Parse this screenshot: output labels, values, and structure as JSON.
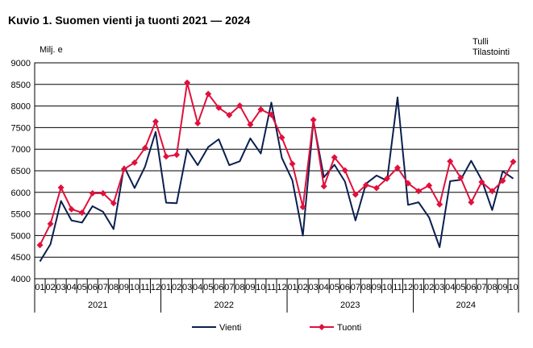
{
  "chart_data": {
    "type": "line",
    "title": "Kuvio 1. Suomen vienti ja tuonti 2021 — 2024",
    "ylabel": "Milj. e",
    "source": [
      "Tulli",
      "Tilastointi"
    ],
    "ylim": [
      4000,
      9000
    ],
    "yticks": [
      4000,
      4500,
      5000,
      5500,
      6000,
      6500,
      7000,
      7500,
      8000,
      8500,
      9000
    ],
    "grid": true,
    "legend_position": "bottom",
    "years": [
      "2021",
      "2022",
      "2023",
      "2024"
    ],
    "months": [
      "01",
      "02",
      "03",
      "04",
      "05",
      "06",
      "07",
      "08",
      "09",
      "10",
      "11",
      "12",
      "01",
      "02",
      "03",
      "04",
      "05",
      "06",
      "07",
      "08",
      "09",
      "10",
      "11",
      "12",
      "01",
      "02",
      "03",
      "04",
      "05",
      "06",
      "07",
      "08",
      "09",
      "10",
      "11",
      "12",
      "01",
      "02",
      "03",
      "04",
      "05",
      "06",
      "07",
      "08",
      "09",
      "10"
    ],
    "series": [
      {
        "name": "Vienti",
        "color": "#0b1f4f",
        "values": [
          4400,
          4800,
          5800,
          5350,
          5300,
          5680,
          5550,
          5150,
          6600,
          6100,
          6600,
          7400,
          5760,
          5750,
          7000,
          6630,
          7050,
          7230,
          6630,
          6720,
          7250,
          6900,
          8080,
          6800,
          6280,
          5000,
          7650,
          6350,
          6640,
          6250,
          5350,
          6200,
          6390,
          6270,
          8200,
          5710,
          5770,
          5420,
          4730,
          6260,
          6290,
          6730,
          6290,
          5590,
          6490,
          6320
        ]
      },
      {
        "name": "Tuonti",
        "color": "#e0103c",
        "values": [
          4780,
          5270,
          6110,
          5610,
          5530,
          5980,
          5980,
          5750,
          6540,
          6690,
          7030,
          7640,
          6830,
          6870,
          8540,
          7600,
          8280,
          7960,
          7790,
          8010,
          7570,
          7920,
          7800,
          7270,
          6660,
          5660,
          7680,
          6140,
          6810,
          6510,
          5950,
          6170,
          6100,
          6320,
          6570,
          6210,
          6030,
          6160,
          5720,
          6720,
          6340,
          5770,
          6240,
          6030,
          6270,
          6710
        ]
      }
    ]
  }
}
